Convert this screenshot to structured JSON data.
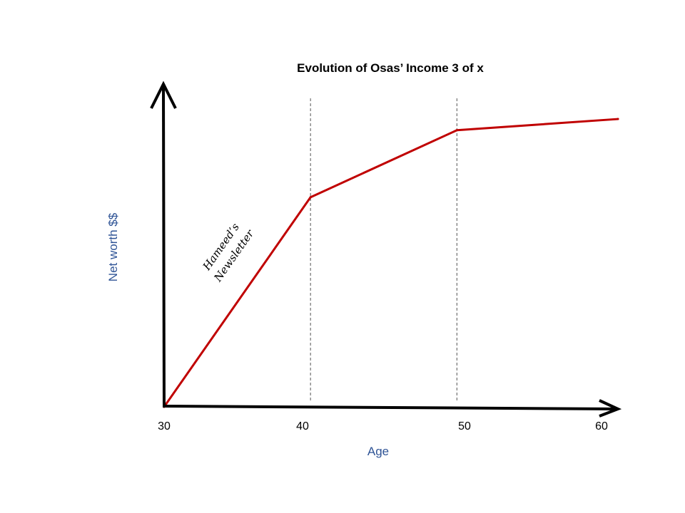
{
  "chart_data": {
    "type": "line",
    "title": "Evolution of Osas’ Income 3 of x",
    "xlabel": "Age",
    "ylabel": "Net worth $$",
    "x_ticks": [
      "30",
      "40",
      "50",
      "60"
    ],
    "xlim": [
      30,
      61
    ],
    "ylim": [
      0,
      11.5
    ],
    "grid": false,
    "vlines": [
      40,
      50
    ],
    "series": [
      {
        "color": "#c00000",
        "points": [
          {
            "x": 30,
            "y": 0
          },
          {
            "x": 40,
            "y": 7.5
          },
          {
            "x": 50,
            "y": 9.9
          },
          {
            "x": 61,
            "y": 10.3
          }
        ]
      }
    ],
    "annotations": [
      {
        "lines": [
          "Hameed’s",
          "Newsletter"
        ]
      }
    ],
    "colors": {
      "line": "#c00000",
      "axis": "#000000",
      "axis_label": "#2f5496",
      "vline": "#555555"
    }
  }
}
